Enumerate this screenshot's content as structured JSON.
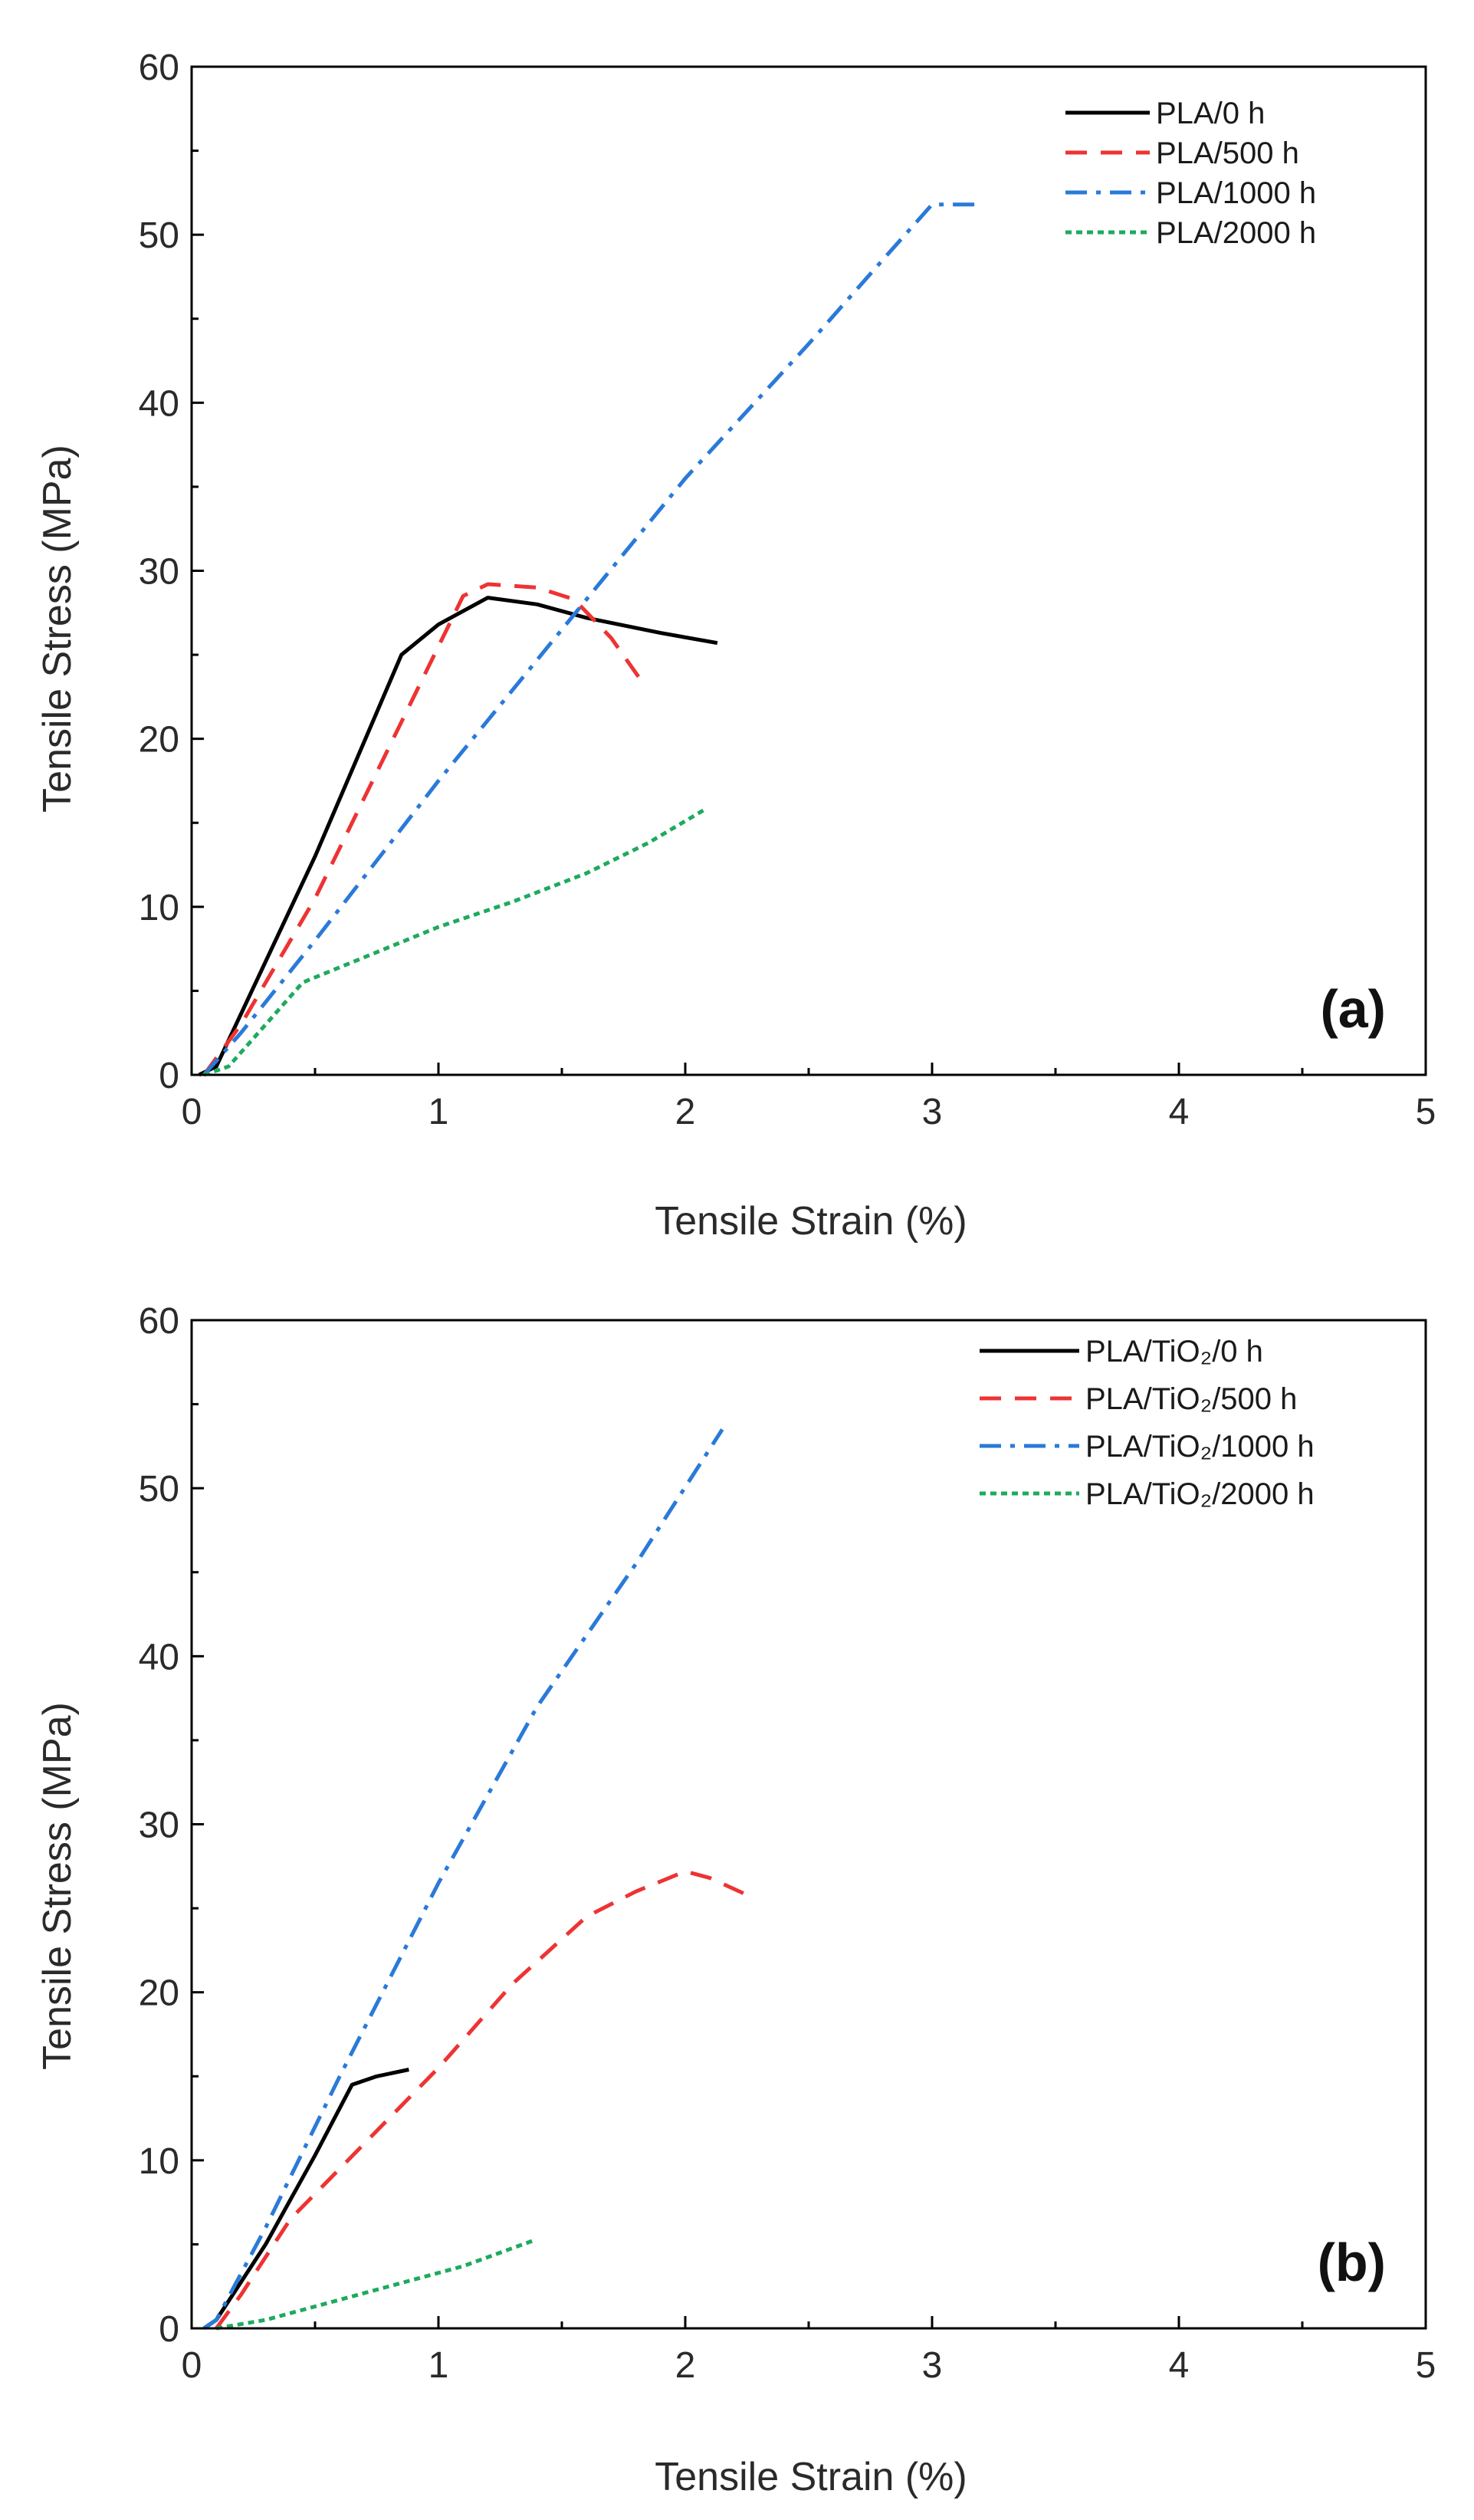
{
  "chart_data": [
    {
      "type": "line",
      "panel_label": "(a)",
      "xlabel": "Tensile Strain (%)",
      "ylabel": "Tensile Stress (MPa)",
      "xlim": [
        0,
        5
      ],
      "ylim": [
        0,
        60
      ],
      "xticks": [
        0,
        1,
        2,
        3,
        4,
        5
      ],
      "yticks": [
        0,
        10,
        20,
        30,
        40,
        50,
        60
      ],
      "grid": false,
      "legend_position": "top-right",
      "series": [
        {
          "name": "PLA/0 h",
          "color": "#000000",
          "dash": "solid",
          "points": [
            [
              0.03,
              0
            ],
            [
              0.1,
              0.5
            ],
            [
              0.5,
              13
            ],
            [
              0.85,
              25
            ],
            [
              1.0,
              26.8
            ],
            [
              1.2,
              28.4
            ],
            [
              1.4,
              28.0
            ],
            [
              1.6,
              27.2
            ],
            [
              1.9,
              26.3
            ],
            [
              2.13,
              25.7
            ]
          ]
        },
        {
          "name": "PLA/500 h",
          "color": "#ee3333",
          "dash": "dashed",
          "points": [
            [
              0.05,
              0
            ],
            [
              0.2,
              3
            ],
            [
              0.5,
              10.5
            ],
            [
              0.8,
              19.5
            ],
            [
              1.0,
              25.5
            ],
            [
              1.1,
              28.5
            ],
            [
              1.2,
              29.2
            ],
            [
              1.4,
              29.0
            ],
            [
              1.55,
              28.3
            ],
            [
              1.7,
              26.0
            ],
            [
              1.82,
              23.5
            ]
          ]
        },
        {
          "name": "PLA/1000 h",
          "color": "#2a7ad8",
          "dash": "dashdot",
          "points": [
            [
              0.05,
              0
            ],
            [
              0.2,
              2.5
            ],
            [
              0.5,
              8.0
            ],
            [
              1.0,
              17.5
            ],
            [
              1.5,
              26.5
            ],
            [
              2.0,
              35.5
            ],
            [
              2.5,
              43.5
            ],
            [
              2.8,
              48.5
            ],
            [
              3.0,
              51.8
            ],
            [
              3.2,
              51.8
            ]
          ]
        },
        {
          "name": "PLA/2000 h",
          "color": "#1eaa5e",
          "dash": "dotted",
          "points": [
            [
              0.05,
              0
            ],
            [
              0.15,
              0.5
            ],
            [
              0.3,
              3.0
            ],
            [
              0.45,
              5.5
            ],
            [
              0.7,
              7.0
            ],
            [
              1.0,
              8.8
            ],
            [
              1.3,
              10.3
            ],
            [
              1.6,
              12.0
            ],
            [
              1.85,
              13.8
            ],
            [
              2.08,
              15.8
            ]
          ]
        }
      ]
    },
    {
      "type": "line",
      "panel_label": "(b)",
      "xlabel": "Tensile Strain (%)",
      "ylabel": "Tensile Stress (MPa)",
      "xlim": [
        0,
        5
      ],
      "ylim": [
        0,
        60
      ],
      "xticks": [
        0,
        1,
        2,
        3,
        4,
        5
      ],
      "yticks": [
        0,
        10,
        20,
        30,
        40,
        50,
        60
      ],
      "grid": false,
      "legend_position": "top-right",
      "series": [
        {
          "name": "PLA/TiO₂/0 h",
          "color": "#000000",
          "dash": "solid",
          "points": [
            [
              0.05,
              0
            ],
            [
              0.1,
              0.5
            ],
            [
              0.3,
              5.0
            ],
            [
              0.5,
              10.3
            ],
            [
              0.65,
              14.5
            ],
            [
              0.75,
              15.0
            ],
            [
              0.88,
              15.4
            ]
          ]
        },
        {
          "name": "PLA/TiO₂/500 h",
          "color": "#ee3333",
          "dash": "dashed",
          "points": [
            [
              0.1,
              0
            ],
            [
              0.2,
              2.0
            ],
            [
              0.4,
              6.5
            ],
            [
              0.7,
              11.0
            ],
            [
              1.0,
              15.5
            ],
            [
              1.3,
              20.5
            ],
            [
              1.6,
              24.5
            ],
            [
              1.8,
              26.0
            ],
            [
              2.0,
              27.2
            ],
            [
              2.1,
              26.8
            ],
            [
              2.25,
              25.8
            ]
          ]
        },
        {
          "name": "PLA/TiO₂/1000 h",
          "color": "#2a7ad8",
          "dash": "dashdot",
          "points": [
            [
              0.05,
              0
            ],
            [
              0.1,
              0.5
            ],
            [
              0.3,
              6.0
            ],
            [
              0.6,
              15.0
            ],
            [
              1.0,
              26.5
            ],
            [
              1.4,
              37.0
            ],
            [
              1.8,
              45.5
            ],
            [
              2.15,
              53.5
            ]
          ]
        },
        {
          "name": "PLA/TiO₂/2000 h",
          "color": "#1eaa5e",
          "dash": "dotted",
          "points": [
            [
              0.1,
              0
            ],
            [
              0.3,
              0.5
            ],
            [
              0.5,
              1.3
            ],
            [
              0.8,
              2.5
            ],
            [
              1.1,
              3.7
            ],
            [
              1.38,
              5.2
            ]
          ]
        }
      ]
    }
  ]
}
